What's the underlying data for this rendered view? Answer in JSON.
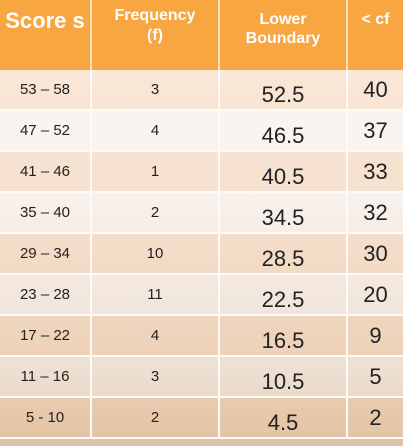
{
  "header": {
    "score": "Score s",
    "frequency": "Frequency (f)",
    "lower_boundary": "Lower Boundary",
    "cf": "< cf"
  },
  "rows": [
    {
      "score": "53 – 58",
      "frequency": "3",
      "lower_boundary": "52.5",
      "cf": "40"
    },
    {
      "score": "47 – 52",
      "frequency": "4",
      "lower_boundary": "46.5",
      "cf": "37"
    },
    {
      "score": "41 – 46",
      "frequency": "1",
      "lower_boundary": "40.5",
      "cf": "33"
    },
    {
      "score": "35 – 40",
      "frequency": "2",
      "lower_boundary": "34.5",
      "cf": "32"
    },
    {
      "score": "29 – 34",
      "frequency": "10",
      "lower_boundary": "28.5",
      "cf": "30"
    },
    {
      "score": "23 – 28",
      "frequency": "11",
      "lower_boundary": "22.5",
      "cf": "20"
    },
    {
      "score": "17 – 22",
      "frequency": "4",
      "lower_boundary": "16.5",
      "cf": "9"
    },
    {
      "score": "11 – 16",
      "frequency": "3",
      "lower_boundary": "10.5",
      "cf": "5"
    },
    {
      "score": "5 - 10",
      "frequency": "2",
      "lower_boundary": "4.5",
      "cf": "2"
    }
  ],
  "colors": {
    "header_bg": "#f7a641",
    "header_text": "#ffffff"
  }
}
